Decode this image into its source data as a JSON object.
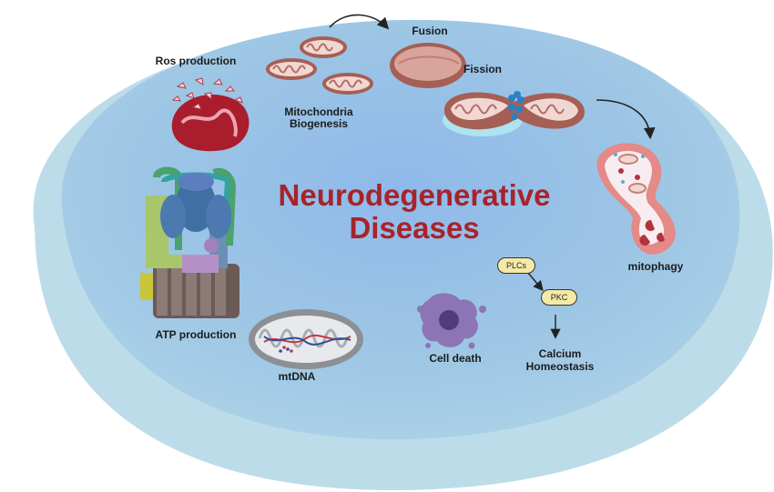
{
  "title": {
    "line1": "Neurodegenerative",
    "line2": "Diseases"
  },
  "labels": {
    "ros_production": "Ros production",
    "biogenesis_line1": "Mitochondria",
    "biogenesis_line2": "Biogenesis",
    "fusion": "Fusion",
    "fission": "Fission",
    "mitophagy": "mitophagy",
    "atp_production": "ATP production",
    "mtdna": "mtDNA",
    "cell_death": "Cell death",
    "calcium_line1": "Calcium",
    "calcium_line2": "Homeostasis"
  },
  "pathway": {
    "plcs": "PLCs",
    "pkc": "PKC"
  },
  "colors": {
    "cell_body": "#9dc6e4",
    "cell_rim": "#b9dbe9",
    "title": "#a8232a",
    "mito_outer": "#c9847c",
    "mito_inner": "#f4d9d4",
    "node_fill": "#f5e9a8"
  }
}
